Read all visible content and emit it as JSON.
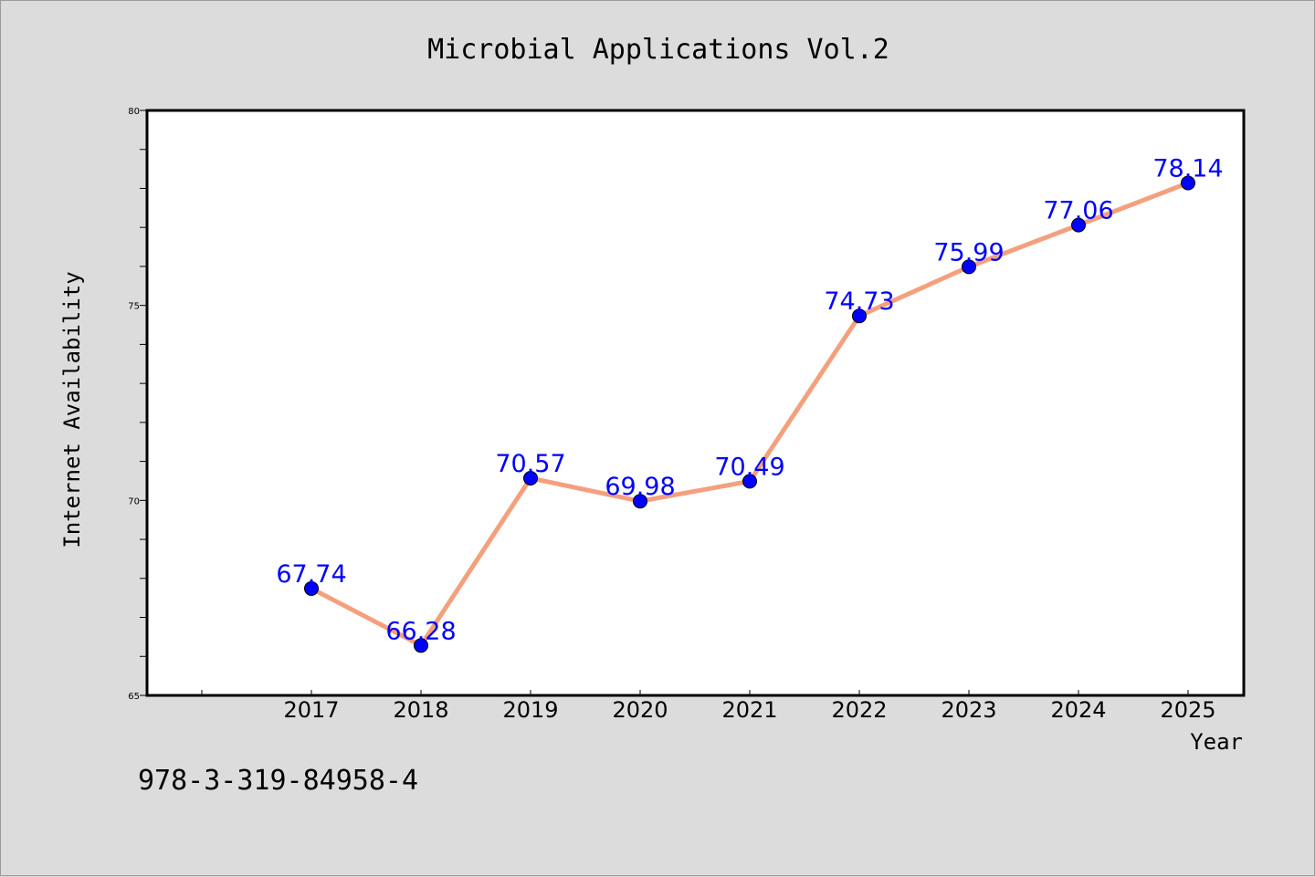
{
  "chart_data": {
    "type": "line",
    "title": "Microbial Applications Vol.2",
    "xlabel": "Year",
    "ylabel": "Internet Availability",
    "footer": "978-3-319-84958-4",
    "categories": [
      "2017",
      "2018",
      "2019",
      "2020",
      "2021",
      "2022",
      "2023",
      "2024",
      "2025"
    ],
    "series": [
      {
        "values": [
          67.74,
          66.28,
          70.57,
          69.98,
          70.49,
          74.73,
          75.99,
          77.06,
          78.14
        ]
      }
    ],
    "data_labels": [
      "67.74",
      "66.28",
      "70.57",
      "69.98",
      "70.49",
      "74.73",
      "75.99",
      "77.06",
      "78.14"
    ],
    "ylim": [
      65,
      80
    ],
    "yticks": [
      "65",
      "70",
      "75",
      "80"
    ],
    "grid": false,
    "colors": {
      "line": "#f4a07e",
      "marker": "#0000ff",
      "label": "#0000ff",
      "background": "#dcdcdc",
      "plot_background": "#ffffff"
    }
  }
}
